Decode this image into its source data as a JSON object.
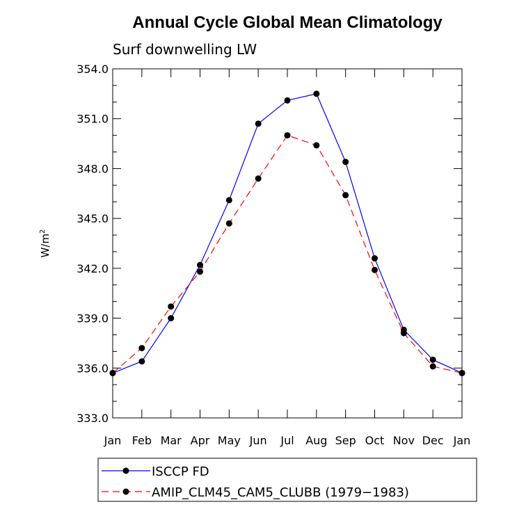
{
  "chart_data": {
    "type": "line",
    "title": "Annual Cycle Global Mean Climatology",
    "subtitle": "Surf downwelling LW",
    "ylabel": "W/m",
    "ylabel_sup": "2",
    "xlabel": "",
    "categories": [
      "Jan",
      "Feb",
      "Mar",
      "Apr",
      "May",
      "Jun",
      "Jul",
      "Aug",
      "Sep",
      "Oct",
      "Nov",
      "Dec",
      "Jan"
    ],
    "ylim": [
      333.0,
      354.0
    ],
    "yticks": [
      "333.0",
      "336.0",
      "339.0",
      "342.0",
      "345.0",
      "348.0",
      "351.0",
      "354.0"
    ],
    "grid": false,
    "legend_position": "bottom",
    "series": [
      {
        "name": "ISCCP FD",
        "color": "#0000ff",
        "dash": "solid",
        "values": [
          335.7,
          336.4,
          339.0,
          342.2,
          346.1,
          350.7,
          352.1,
          352.5,
          348.4,
          342.6,
          338.3,
          336.5,
          335.7
        ]
      },
      {
        "name": "AMIP_CLM45_CAM5_CLUBB (1979−1983)",
        "color": "#ff0000",
        "dash": "dashed",
        "values": [
          335.7,
          337.2,
          339.7,
          341.8,
          344.7,
          347.4,
          350.0,
          349.4,
          346.4,
          341.9,
          338.1,
          336.1,
          335.7
        ]
      }
    ]
  }
}
